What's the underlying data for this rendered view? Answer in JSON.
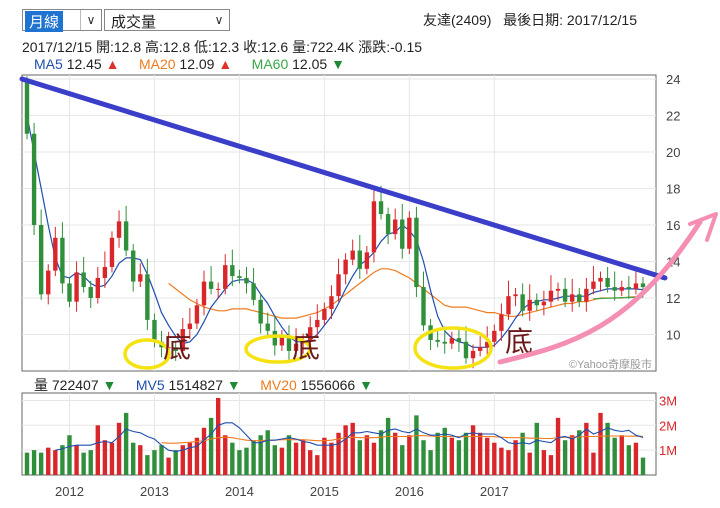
{
  "toolbar": {
    "period_select": "月線",
    "indicator_select": "成交量"
  },
  "header": {
    "stock": "友達(2409)",
    "last_date_label": "最後日期:",
    "last_date": "2017/12/15"
  },
  "ohlc_line": {
    "date": "2017/12/15",
    "open": "開:12.8",
    "high": "高:12.8",
    "low": "低:12.3",
    "close": "收:12.6",
    "volume": "量:722.4K",
    "change": "漲跌:-0.15"
  },
  "ma_legend": [
    {
      "label": "MA5",
      "value": "12.45",
      "dir": "▲",
      "color": "#1f4fb0",
      "dir_color": "#e0302a"
    },
    {
      "label": "MA20",
      "value": "12.09",
      "dir": "▲",
      "color": "#f07b1d",
      "dir_color": "#e0302a"
    },
    {
      "label": "MA60",
      "value": "12.05",
      "dir": "▼",
      "color": "#3aa84a",
      "dir_color": "#1e8a34"
    }
  ],
  "vol_legend": [
    {
      "label": "量",
      "value": "722407",
      "dir": "▼",
      "color": "#222222",
      "dir_color": "#1e8a34"
    },
    {
      "label": "MV5",
      "value": "1514827",
      "dir": "▼",
      "color": "#1f4fb0",
      "dir_color": "#1e8a34"
    },
    {
      "label": "MV20",
      "value": "1556066",
      "dir": "▼",
      "color": "#f07b1d",
      "dir_color": "#1e8a34"
    }
  ],
  "watermark": "©Yahoo奇摩股市",
  "annotations": [
    "底",
    "底",
    "底"
  ],
  "colors": {
    "up": "#d9262b",
    "down": "#2f8f3a",
    "trend": "#3a3ec8",
    "circle": "#f4e311",
    "arrow": "#f48fb3"
  },
  "chart_data": [
    {
      "type": "candlestick",
      "x_ticks": [
        "2012",
        "2013",
        "2014",
        "2015",
        "2016",
        "2017"
      ],
      "y_ticks": [
        "10",
        "12",
        "14",
        "16",
        "18",
        "20",
        "22",
        "24"
      ],
      "ylim": [
        8,
        24
      ],
      "series_open": [
        23.8,
        21,
        16,
        12.2,
        13.5,
        15.3,
        12.8,
        11.8,
        13.4,
        12.6,
        12,
        13.1,
        13.7,
        15.3,
        16.2,
        14.6,
        12.9,
        13.3,
        10.8,
        9.6,
        9.3,
        9.3,
        9.1,
        10.3,
        10.6,
        11.6,
        12.9,
        12.5,
        12.5,
        13.8,
        13.2,
        13.1,
        12.8,
        11.9,
        10.6,
        10.2,
        9.4,
        9.9,
        9.1,
        9.5,
        9.7,
        10.4,
        10.8,
        11.4,
        12.1,
        13.3,
        14.1,
        14.6,
        13.6,
        14.5,
        17.3,
        16.6,
        15.5,
        16.3,
        14.7,
        16.4,
        12.6,
        10.5,
        9.7,
        9.6,
        9.5,
        9.8,
        9.6,
        8.7,
        9.1,
        9.3,
        9.6,
        10.2,
        11.1,
        12.1,
        12.2,
        11.3,
        11.9,
        11.6,
        11.8,
        12.4,
        12.5,
        11.8,
        12.2,
        11.8,
        12.5,
        12.9,
        13.1,
        12.6,
        12.4,
        12.6,
        12.5,
        12.8
      ],
      "series_close": [
        21,
        16,
        12.2,
        13.5,
        15.3,
        12.8,
        11.8,
        13.4,
        12.6,
        12,
        13.1,
        13.7,
        15.3,
        16.2,
        14.6,
        12.9,
        13.3,
        10.8,
        9.6,
        9.3,
        9.3,
        9.1,
        10.3,
        10.6,
        11.6,
        12.9,
        12.5,
        12.5,
        13.8,
        13.2,
        13.1,
        12.8,
        11.9,
        10.6,
        10.2,
        9.4,
        9.9,
        9.1,
        9.5,
        9.7,
        10.4,
        10.8,
        11.4,
        12.1,
        13.3,
        14.1,
        14.6,
        13.6,
        14.5,
        17.3,
        16.6,
        15.5,
        16.3,
        14.7,
        16.4,
        12.6,
        10.5,
        9.7,
        9.6,
        9.5,
        9.8,
        9.6,
        8.7,
        9.1,
        9.3,
        9.6,
        10.2,
        11.1,
        12.1,
        12.2,
        11.3,
        11.9,
        11.6,
        11.8,
        12.4,
        12.5,
        11.8,
        12.2,
        11.8,
        12.5,
        12.9,
        13.1,
        12.6,
        12.4,
        12.6,
        12.5,
        12.8,
        12.6
      ],
      "ma5": [
        22,
        20,
        18,
        16,
        14.2,
        13.2,
        13.1,
        13.4,
        13.2,
        12.8,
        12.6,
        12.7,
        13.2,
        13.9,
        14.2,
        14.2,
        14.1,
        13.3,
        12.3,
        11.2,
        10.5,
        9.9,
        9.5,
        9.6,
        10,
        10.7,
        11.5,
        12,
        12.5,
        12.9,
        13,
        13,
        12.8,
        12.2,
        11.7,
        11,
        10.4,
        9.9,
        9.6,
        9.6,
        9.7,
        10,
        10.5,
        11,
        11.7,
        12.5,
        13.2,
        13.8,
        14.1,
        14.5,
        15.1,
        15.5,
        15.6,
        16,
        15.7,
        15.2,
        14,
        12.4,
        11,
        10.2,
        9.8,
        9.6,
        9.5,
        9.3,
        9.3,
        9.3,
        9.4,
        9.8,
        10.3,
        10.9,
        11.4,
        11.7,
        11.8,
        11.9,
        11.9,
        12,
        12.1,
        12.1,
        12.1,
        12.1,
        12.3,
        12.4,
        12.5,
        12.5,
        12.5,
        12.5,
        12.5,
        12.45
      ],
      "ma20": [
        null,
        null,
        null,
        null,
        null,
        null,
        null,
        null,
        null,
        null,
        null,
        null,
        null,
        null,
        null,
        null,
        null,
        null,
        null,
        null,
        12.8,
        12.5,
        12.2,
        11.9,
        11.7,
        11.5,
        11.4,
        11.3,
        11.3,
        11.4,
        11.4,
        11.4,
        11.3,
        11.2,
        11.1,
        11,
        10.9,
        10.9,
        10.9,
        11,
        11.1,
        11.2,
        11.4,
        11.6,
        11.9,
        12.2,
        12.5,
        12.8,
        13.1,
        13.4,
        13.6,
        13.6,
        13.5,
        13.3,
        13.1,
        12.8,
        12.5,
        12.2,
        11.9,
        11.6,
        11.5,
        11.5,
        11.5,
        11.4,
        11.3,
        11.2,
        11.2,
        11.1,
        11,
        11,
        11.1,
        11.2,
        11.3,
        11.4,
        11.5,
        11.6,
        11.7,
        11.7,
        11.8,
        11.8,
        11.9,
        12,
        12,
        12,
        12,
        12.05,
        12.07,
        12.09
      ],
      "ma60": [
        null,
        null,
        null,
        null,
        null,
        null,
        null,
        null,
        null,
        null,
        null,
        null,
        null,
        null,
        null,
        null,
        null,
        null,
        null,
        null,
        null,
        null,
        null,
        null,
        null,
        null,
        null,
        null,
        null,
        null,
        null,
        null,
        null,
        null,
        null,
        null,
        null,
        null,
        null,
        null,
        null,
        null,
        null,
        null,
        null,
        null,
        null,
        null,
        null,
        null,
        null,
        null,
        null,
        null,
        null,
        null,
        null,
        null,
        null,
        null,
        null,
        null,
        null,
        null,
        null,
        null,
        null,
        null,
        null,
        null,
        null,
        null,
        null,
        null,
        null,
        null,
        null,
        null,
        null,
        null,
        11.95,
        11.97,
        11.99,
        12,
        12.02,
        12.03,
        12.04,
        12.05
      ]
    },
    {
      "type": "bar",
      "title": "volume",
      "y_ticks": [
        "1M",
        "2M",
        "3M"
      ],
      "ylim": [
        0,
        3.3
      ],
      "values": [
        0.9,
        1.0,
        0.9,
        1.1,
        1.0,
        1.2,
        1.6,
        1.2,
        0.9,
        1.0,
        2.0,
        1.4,
        1.3,
        2.1,
        2.5,
        1.3,
        1.2,
        0.8,
        1.0,
        1.2,
        0.7,
        1.0,
        1.2,
        1.3,
        1.5,
        1.9,
        2.3,
        3.1,
        1.6,
        1.3,
        1.0,
        1.1,
        1.4,
        1.6,
        1.8,
        1.2,
        1.1,
        1.6,
        1.3,
        1.4,
        1.0,
        0.8,
        1.5,
        1.3,
        1.7,
        2.0,
        2.1,
        1.4,
        1.6,
        1.3,
        1.8,
        2.3,
        1.7,
        1.2,
        1.6,
        2.4,
        1.4,
        1.0,
        1.7,
        1.9,
        1.5,
        1.4,
        1.7,
        2.0,
        1.7,
        1.5,
        1.3,
        1.1,
        1.0,
        1.4,
        1.7,
        0.9,
        2.1,
        1.0,
        0.8,
        2.3,
        1.4,
        1.6,
        1.8,
        2.1,
        0.9,
        2.5,
        2.1,
        1.5,
        1.6,
        1.2,
        1.3,
        0.7
      ],
      "mv5": [
        null,
        null,
        null,
        null,
        1.0,
        1.05,
        1.15,
        1.2,
        1.2,
        1.2,
        1.3,
        1.35,
        1.3,
        1.55,
        1.85,
        1.75,
        1.7,
        1.55,
        1.45,
        1.2,
        1.0,
        0.95,
        1.0,
        1.1,
        1.15,
        1.4,
        1.65,
        2.0,
        2.1,
        2.1,
        1.9,
        1.6,
        1.3,
        1.3,
        1.4,
        1.4,
        1.45,
        1.5,
        1.45,
        1.35,
        1.3,
        1.2,
        1.2,
        1.2,
        1.25,
        1.45,
        1.7,
        1.7,
        1.75,
        1.7,
        1.65,
        1.8,
        1.85,
        1.75,
        1.7,
        1.85,
        1.7,
        1.6,
        1.6,
        1.65,
        1.6,
        1.5,
        1.65,
        1.7,
        1.65,
        1.65,
        1.65,
        1.5,
        1.3,
        1.25,
        1.3,
        1.25,
        1.4,
        1.35,
        1.3,
        1.5,
        1.55,
        1.45,
        1.6,
        1.85,
        1.65,
        1.75,
        1.9,
        1.8,
        1.75,
        1.8,
        1.6,
        1.51
      ],
      "mv20": [
        null,
        null,
        null,
        null,
        null,
        null,
        null,
        null,
        null,
        null,
        null,
        null,
        null,
        null,
        null,
        null,
        null,
        null,
        null,
        1.3,
        1.28,
        1.28,
        1.3,
        1.32,
        1.35,
        1.38,
        1.45,
        1.5,
        1.52,
        1.5,
        1.45,
        1.4,
        1.38,
        1.38,
        1.4,
        1.4,
        1.42,
        1.42,
        1.42,
        1.42,
        1.4,
        1.38,
        1.38,
        1.4,
        1.45,
        1.5,
        1.52,
        1.5,
        1.5,
        1.5,
        1.52,
        1.55,
        1.55,
        1.55,
        1.55,
        1.58,
        1.58,
        1.57,
        1.55,
        1.55,
        1.55,
        1.54,
        1.54,
        1.55,
        1.55,
        1.55,
        1.54,
        1.52,
        1.5,
        1.5,
        1.5,
        1.48,
        1.48,
        1.47,
        1.47,
        1.5,
        1.52,
        1.52,
        1.53,
        1.55,
        1.55,
        1.56,
        1.57,
        1.57,
        1.57,
        1.56,
        1.56,
        1.556
      ]
    }
  ]
}
